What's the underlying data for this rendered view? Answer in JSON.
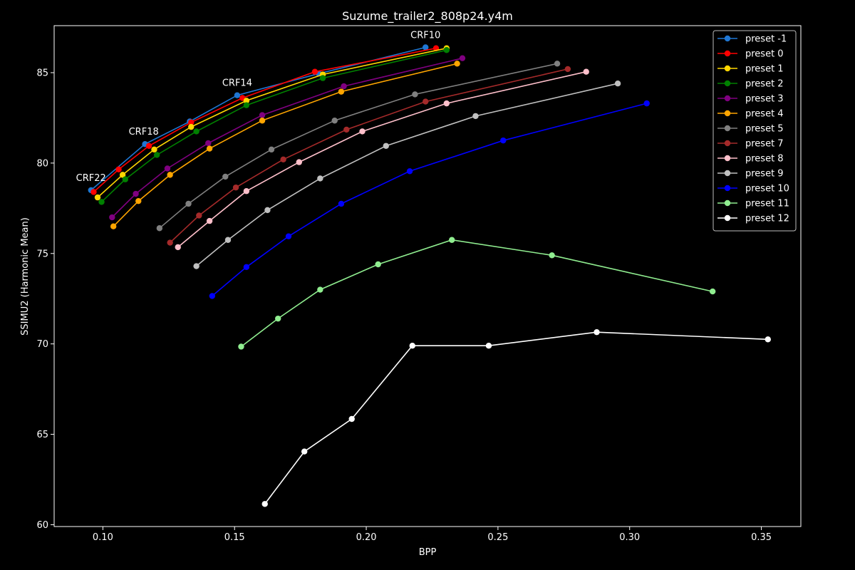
{
  "chart_data": {
    "type": "line",
    "title": "Suzume_trailer2_808p24.y4m",
    "xlabel": "BPP",
    "ylabel": "SSIMU2 (Harmonic Mean)",
    "xlim": [
      0.0815,
      0.365
    ],
    "ylim": [
      59.9,
      87.6
    ],
    "xticks": [
      0.1,
      0.15,
      0.2,
      0.25,
      0.3,
      0.35
    ],
    "xtick_labels": [
      "0.10",
      "0.15",
      "0.20",
      "0.25",
      "0.30",
      "0.35"
    ],
    "yticks": [
      60,
      65,
      70,
      75,
      80,
      85
    ],
    "ytick_labels": [
      "60",
      "65",
      "70",
      "75",
      "80",
      "85"
    ],
    "grid": false,
    "legend_position": "top-right",
    "annotations": [
      {
        "text": "CRF10",
        "x": 0.2225,
        "y": 86.4
      },
      {
        "text": "CRF14",
        "x": 0.151,
        "y": 83.75
      },
      {
        "text": "CRF18",
        "x": 0.1155,
        "y": 81.05
      },
      {
        "text": "CRF22",
        "x": 0.0955,
        "y": 78.5
      }
    ],
    "series": [
      {
        "name": "preset -1",
        "color": "#1f77d4",
        "x": [
          0.0955,
          0.116,
          0.133,
          0.151,
          0.182,
          0.2225
        ],
        "y": [
          78.5,
          81.05,
          82.3,
          83.75,
          84.95,
          86.4
        ]
      },
      {
        "name": "preset 0",
        "color": "#ff0000",
        "x": [
          0.0965,
          0.106,
          0.1175,
          0.1335,
          0.153,
          0.1805,
          0.2265
        ],
        "y": [
          78.4,
          79.65,
          80.95,
          82.25,
          83.6,
          85.05,
          86.35
        ]
      },
      {
        "name": "preset 1",
        "color": "#ffd700",
        "x": [
          0.098,
          0.1075,
          0.1195,
          0.1335,
          0.1545,
          0.1835,
          0.2305
        ],
        "y": [
          78.1,
          79.35,
          80.75,
          82.0,
          83.45,
          84.9,
          86.35
        ]
      },
      {
        "name": "preset 2",
        "color": "#008000",
        "x": [
          0.0995,
          0.1085,
          0.1205,
          0.1355,
          0.1545,
          0.1835,
          0.2305
        ],
        "y": [
          77.85,
          79.1,
          80.45,
          81.75,
          83.2,
          84.7,
          86.25
        ]
      },
      {
        "name": "preset 3",
        "color": "#800080",
        "x": [
          0.1035,
          0.1125,
          0.1245,
          0.14,
          0.1605,
          0.1915,
          0.2365
        ],
        "y": [
          77.0,
          78.3,
          79.7,
          81.1,
          82.65,
          84.25,
          85.8
        ]
      },
      {
        "name": "preset 4",
        "color": "#ffa500",
        "x": [
          0.104,
          0.1135,
          0.1255,
          0.1405,
          0.1605,
          0.1905,
          0.2345
        ],
        "y": [
          76.5,
          77.9,
          79.35,
          80.8,
          82.35,
          83.95,
          85.5
        ]
      },
      {
        "name": "preset 5",
        "color": "#808080",
        "x": [
          0.1215,
          0.1325,
          0.1465,
          0.164,
          0.188,
          0.2185,
          0.2725
        ],
        "y": [
          76.4,
          77.75,
          79.25,
          80.75,
          82.35,
          83.8,
          85.5
        ]
      },
      {
        "name": "preset 7",
        "color": "#a52a2a",
        "x": [
          0.1255,
          0.1365,
          0.1505,
          0.1685,
          0.1925,
          0.2225,
          0.2765
        ],
        "y": [
          75.6,
          77.1,
          78.65,
          80.2,
          81.85,
          83.4,
          85.2
        ]
      },
      {
        "name": "preset 8",
        "color": "#ffc0cb",
        "x": [
          0.1285,
          0.1405,
          0.1545,
          0.1745,
          0.1985,
          0.2305,
          0.2835
        ],
        "y": [
          75.35,
          76.8,
          78.45,
          80.05,
          81.75,
          83.3,
          85.05
        ]
      },
      {
        "name": "preset 9",
        "color": "#c0c0c0",
        "x": [
          0.1355,
          0.1475,
          0.1625,
          0.1825,
          0.2075,
          0.2415,
          0.2955
        ],
        "y": [
          74.3,
          75.75,
          77.4,
          79.15,
          80.95,
          82.6,
          84.4
        ]
      },
      {
        "name": "preset 10",
        "color": "#0000ff",
        "x": [
          0.1415,
          0.1545,
          0.1705,
          0.1905,
          0.2165,
          0.252,
          0.3065
        ],
        "y": [
          72.65,
          74.25,
          75.95,
          77.75,
          79.55,
          81.25,
          83.3
        ]
      },
      {
        "name": "preset 11",
        "color": "#90ee90",
        "x": [
          0.1525,
          0.1665,
          0.1825,
          0.2045,
          0.2325,
          0.2705,
          0.3315
        ],
        "y": [
          69.85,
          71.4,
          73.0,
          74.4,
          75.75,
          74.9,
          72.9
        ]
      },
      {
        "name": "preset 12",
        "color": "#ffffff",
        "x": [
          0.1615,
          0.1765,
          0.1945,
          0.2175,
          0.2465,
          0.2875,
          0.3525
        ],
        "y": [
          61.15,
          64.05,
          65.85,
          69.9,
          69.9,
          70.65,
          70.25
        ]
      }
    ]
  }
}
